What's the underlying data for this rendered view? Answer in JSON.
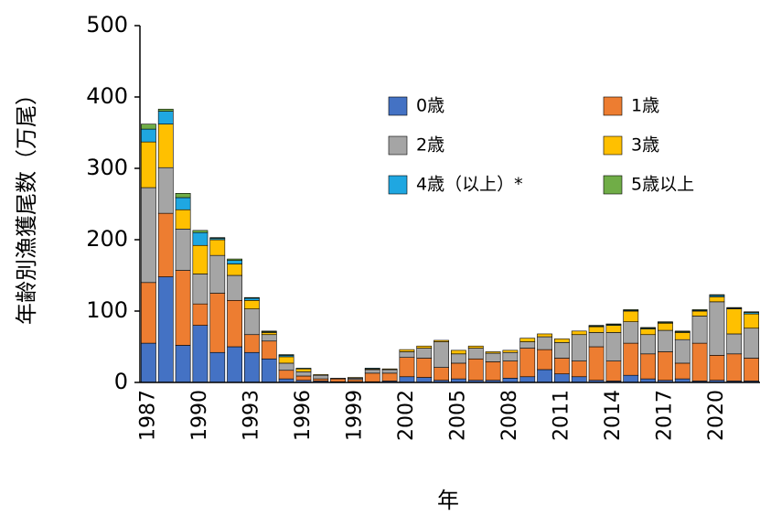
{
  "chart_data": {
    "type": "stacked_bar",
    "y_label": "年齢別漁獲尾数（万尾）",
    "x_label": "年",
    "categories": [
      "1987",
      null,
      null,
      "1990",
      null,
      null,
      "1993",
      null,
      null,
      "1996",
      null,
      null,
      "1999",
      null,
      null,
      "2002",
      null,
      null,
      "2005",
      null,
      null,
      "2008",
      null,
      null,
      "2011",
      null,
      null,
      "2014",
      null,
      null,
      "2017",
      null,
      null,
      "2020",
      null,
      null
    ],
    "ylim": [
      0,
      500
    ],
    "yticks": [
      0,
      100,
      200,
      300,
      400,
      500
    ],
    "series": [
      {
        "name": "0歳",
        "color": "#4472c4",
        "values": [
          55,
          148,
          52,
          80,
          42,
          50,
          42,
          33,
          5,
          3,
          2,
          1,
          1,
          1,
          2,
          8,
          7,
          3,
          5,
          3,
          3,
          6,
          8,
          18,
          12,
          8,
          3,
          2,
          10,
          5,
          3,
          5,
          2,
          3,
          2,
          2
        ]
      },
      {
        "name": "1歳",
        "color": "#ed7d31",
        "values": [
          85,
          89,
          105,
          30,
          83,
          65,
          25,
          25,
          12,
          6,
          3,
          4,
          3,
          12,
          11,
          27,
          27,
          18,
          22,
          30,
          26,
          24,
          40,
          28,
          22,
          22,
          47,
          28,
          45,
          35,
          40,
          22,
          53,
          35,
          38,
          32
        ]
      },
      {
        "name": "2歳",
        "color": "#a5a5a5",
        "values": [
          133,
          64,
          58,
          42,
          53,
          35,
          36,
          9,
          10,
          6,
          5,
          1,
          2,
          5,
          5,
          8,
          14,
          36,
          13,
          15,
          12,
          12,
          9,
          18,
          22,
          37,
          20,
          40,
          30,
          27,
          30,
          33,
          38,
          75,
          28,
          42
        ]
      },
      {
        "name": "3歳",
        "color": "#ffc000",
        "values": [
          64,
          61,
          27,
          40,
          22,
          16,
          12,
          3,
          9,
          4,
          1,
          0,
          1,
          1,
          1,
          3,
          3,
          2,
          5,
          3,
          2,
          3,
          5,
          4,
          5,
          5,
          8,
          10,
          15,
          8,
          10,
          10,
          7,
          7,
          35,
          20
        ]
      },
      {
        "name": "4歳（以上）*",
        "color": "#1fa7e1",
        "values": [
          18,
          18,
          17,
          18,
          2,
          5,
          3,
          1,
          2,
          1,
          0,
          0,
          0,
          1,
          0,
          0,
          0,
          0,
          0,
          0,
          0,
          0,
          0,
          0,
          0,
          0,
          1,
          1,
          1,
          1,
          1,
          1,
          1,
          2,
          1,
          2
        ]
      },
      {
        "name": "5歳以上",
        "color": "#70ad47",
        "values": [
          7,
          3,
          6,
          3,
          1,
          2,
          1,
          1,
          1,
          0,
          0,
          0,
          0,
          0,
          0,
          0,
          0,
          0,
          0,
          0,
          0,
          0,
          0,
          0,
          0,
          0,
          1,
          1,
          1,
          1,
          1,
          1,
          1,
          1,
          1,
          1
        ]
      }
    ]
  }
}
